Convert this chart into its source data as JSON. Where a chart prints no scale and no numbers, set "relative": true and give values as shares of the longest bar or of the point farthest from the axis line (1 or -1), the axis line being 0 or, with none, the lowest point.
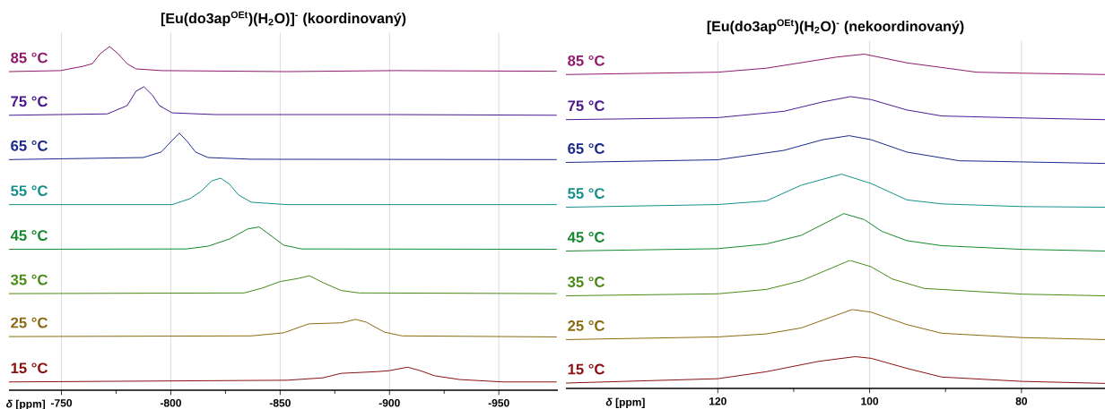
{
  "chart_data": [
    {
      "type": "line",
      "relative": true,
      "title": "[Eu(do3ap$^{OEt}$)(H$_{2}$O)]$^{-}$  (koordinovaný)",
      "xlabel": "*δ* [ppm]",
      "xlim": [
        -726,
        -977
      ],
      "xticks": [
        -750,
        -800,
        -850,
        -900,
        -950
      ],
      "grid": "x",
      "tick_labels": "x",
      "legend": false,
      "series": [
        {
          "name": "85 °C",
          "color": "#8e1a6b",
          "x": [
            -726,
            -749.6,
            -759.5,
            -764.1,
            -767.7,
            -772,
            -775.9,
            -780,
            -784.1,
            -795.6,
            -853,
            -902.5,
            -976.5
          ],
          "values": [
            0.927,
            0.93,
            0.942,
            0.95,
            0.979,
            1,
            0.979,
            0.95,
            0.935,
            0.93,
            0.927,
            0.93,
            0.928
          ]
        },
        {
          "name": "75 °C",
          "color": "#4b1a8f",
          "x": [
            -726,
            -771,
            -780,
            -784.1,
            -787.7,
            -791.5,
            -794.8,
            -800.6,
            -820.3,
            -902.5,
            -976.5
          ],
          "values": [
            0.8,
            0.804,
            0.828,
            0.87,
            0.883,
            0.859,
            0.828,
            0.807,
            0.802,
            0.802,
            0.8
          ]
        },
        {
          "name": "65 °C",
          "color": "#1a2a8a",
          "x": [
            -726,
            -787.4,
            -795.6,
            -800.2,
            -803.9,
            -807.5,
            -811.3,
            -817,
            -836.8,
            -976.5
          ],
          "values": [
            0.671,
            0.677,
            0.693,
            0.724,
            0.748,
            0.724,
            0.693,
            0.677,
            0.672,
            0.671
          ]
        },
        {
          "name": "55 °C",
          "color": "#14908a",
          "x": [
            -726,
            -800.6,
            -808.7,
            -813.7,
            -818.7,
            -822.8,
            -826.9,
            -831,
            -836.8,
            -853.2,
            -976.5
          ],
          "values": [
            0.54,
            0.54,
            0.557,
            0.578,
            0.609,
            0.617,
            0.599,
            0.568,
            0.547,
            0.54,
            0.54
          ]
        },
        {
          "name": "45 °C",
          "color": "#14892e",
          "x": [
            -726,
            -807.2,
            -817,
            -826.9,
            -835.1,
            -840.4,
            -846.6,
            -851.6,
            -859.8,
            -976.5
          ],
          "values": [
            0.41,
            0.411,
            0.419,
            0.44,
            0.469,
            0.475,
            0.446,
            0.422,
            0.411,
            0.41
          ]
        },
        {
          "name": "35 °C",
          "color": "#4a8a14",
          "x": [
            -726,
            -833.5,
            -841.7,
            -849.9,
            -858.1,
            -863.4,
            -869.6,
            -877.9,
            -886.1,
            -976.5
          ],
          "values": [
            0.281,
            0.283,
            0.297,
            0.316,
            0.325,
            0.333,
            0.313,
            0.29,
            0.283,
            0.281
          ]
        },
        {
          "name": "25 °C",
          "color": "#8a6a10",
          "x": [
            -726,
            -836.8,
            -851.6,
            -863.1,
            -877.9,
            -884.5,
            -889.4,
            -897.6,
            -905.8,
            -976.5
          ],
          "values": [
            0.156,
            0.158,
            0.167,
            0.193,
            0.196,
            0.206,
            0.198,
            0.169,
            0.158,
            0.155
          ]
        },
        {
          "name": "15 °C",
          "color": "#8a1010",
          "x": [
            -726,
            -853.2,
            -869.6,
            -877.9,
            -894.3,
            -900.1,
            -908.3,
            -914,
            -920.6,
            -932.1,
            -951.9,
            -976.5
          ],
          "values": [
            0.024,
            0.029,
            0.036,
            0.049,
            0.054,
            0.057,
            0.067,
            0.057,
            0.042,
            0.031,
            0.024,
            0.024
          ]
        }
      ]
    },
    {
      "type": "line",
      "relative": true,
      "title": "[Eu(do3ap$^{OEt}$)(H$_{2}$O)$^{-}$ (nekoordinovaný)",
      "xlabel": "*δ* [ppm]",
      "xlim": [
        140,
        69
      ],
      "xticks": [
        120,
        100,
        80
      ],
      "grid": "x",
      "tick_labels": "x",
      "legend": false,
      "series": [
        {
          "name": "85 °C",
          "color": "#8e1a6b",
          "x": [
            140,
            120,
            113.6,
            104.4,
            100.7,
            95.1,
            85.9,
            79.9,
            69
          ],
          "values": [
            0.939,
            0.946,
            0.958,
            0.991,
            1.0,
            0.974,
            0.946,
            0.943,
            0.939
          ]
        },
        {
          "name": "75 °C",
          "color": "#4b1a8f",
          "x": [
            140,
            120,
            111.3,
            106.2,
            102.5,
            99.8,
            95.1,
            90.5,
            79.9,
            69
          ],
          "values": [
            0.804,
            0.81,
            0.829,
            0.857,
            0.873,
            0.864,
            0.833,
            0.815,
            0.809,
            0.804
          ]
        },
        {
          "name": "65 °C",
          "color": "#1a2a8a",
          "x": [
            140,
            120,
            111.3,
            106.2,
            102.7,
            99.8,
            95.1,
            88.2,
            69
          ],
          "values": [
            0.676,
            0.684,
            0.712,
            0.744,
            0.756,
            0.744,
            0.707,
            0.681,
            0.673
          ]
        },
        {
          "name": "55 °C",
          "color": "#14908a",
          "x": [
            140,
            120,
            113.6,
            109,
            103.7,
            99.8,
            95.1,
            90.5,
            79.9,
            69
          ],
          "values": [
            0.542,
            0.55,
            0.561,
            0.608,
            0.641,
            0.613,
            0.564,
            0.552,
            0.544,
            0.542
          ]
        },
        {
          "name": "45 °C",
          "color": "#14892e",
          "x": [
            140,
            120,
            113.6,
            109,
            103.4,
            100.7,
            98.4,
            95.1,
            90.5,
            79.9,
            69
          ],
          "values": [
            0.411,
            0.418,
            0.432,
            0.458,
            0.523,
            0.505,
            0.47,
            0.442,
            0.427,
            0.416,
            0.411
          ]
        },
        {
          "name": "35 °C",
          "color": "#4a8a14",
          "x": [
            140,
            120,
            113.6,
            109,
            102.6,
            99.8,
            97,
            92.8,
            79.9,
            69
          ],
          "values": [
            0.277,
            0.283,
            0.296,
            0.322,
            0.383,
            0.364,
            0.327,
            0.299,
            0.282,
            0.277
          ]
        },
        {
          "name": "25 °C",
          "color": "#8a6a10",
          "x": [
            140,
            120,
            113.6,
            109,
            102.3,
            99.8,
            95.1,
            90.5,
            79.9,
            69
          ],
          "values": [
            0.146,
            0.154,
            0.163,
            0.181,
            0.236,
            0.228,
            0.191,
            0.165,
            0.152,
            0.146
          ]
        },
        {
          "name": "15 °C",
          "color": "#8a1010",
          "x": [
            140,
            120,
            113.6,
            106.7,
            101.9,
            99.8,
            95.1,
            90.5,
            79.9,
            69
          ],
          "values": [
            0.016,
            0.029,
            0.05,
            0.081,
            0.095,
            0.09,
            0.06,
            0.034,
            0.021,
            0.015
          ]
        }
      ]
    }
  ]
}
